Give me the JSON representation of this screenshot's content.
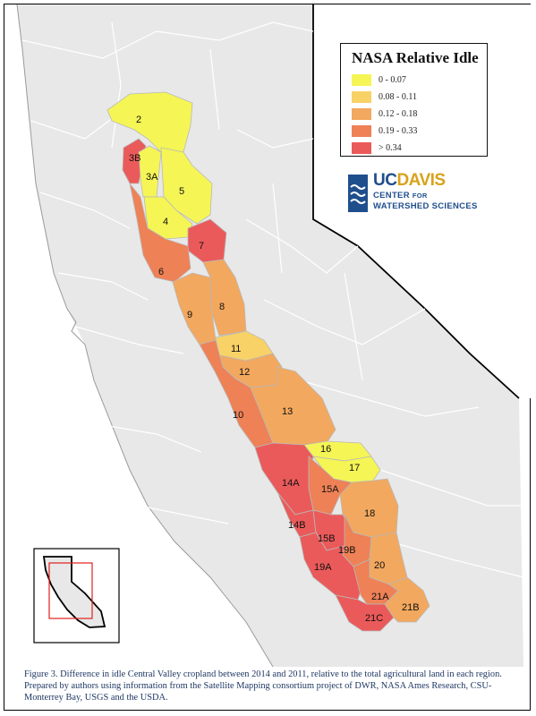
{
  "legend": {
    "title": "NASA Relative Idle",
    "classes": [
      {
        "label": "0 - 0.07",
        "color": "#f5f556"
      },
      {
        "label": "0.08 - 0.11",
        "color": "#f8d267"
      },
      {
        "label": "0.12 - 0.18",
        "color": "#f2a85e"
      },
      {
        "label": "0.19 - 0.33",
        "color": "#ee8156"
      },
      {
        "label": "> 0.34",
        "color": "#eb5a5a"
      }
    ]
  },
  "logo": {
    "uc": "UC",
    "davis": "DAVIS",
    "line1": "CENTER",
    "line1_small": "FOR",
    "line2": "WATERSHED SCIENCES"
  },
  "regions": [
    {
      "id": "2",
      "class": 0
    },
    {
      "id": "3B",
      "class": 4
    },
    {
      "id": "3A",
      "class": 0
    },
    {
      "id": "5",
      "class": 0
    },
    {
      "id": "4",
      "class": 0
    },
    {
      "id": "7",
      "class": 4
    },
    {
      "id": "6",
      "class": 3
    },
    {
      "id": "9",
      "class": 2
    },
    {
      "id": "8",
      "class": 2
    },
    {
      "id": "11",
      "class": 1
    },
    {
      "id": "12",
      "class": 2
    },
    {
      "id": "10",
      "class": 3
    },
    {
      "id": "13",
      "class": 2
    },
    {
      "id": "16",
      "class": 0
    },
    {
      "id": "17",
      "class": 0
    },
    {
      "id": "14A",
      "class": 4
    },
    {
      "id": "15A",
      "class": 3
    },
    {
      "id": "18",
      "class": 2
    },
    {
      "id": "14B",
      "class": 4
    },
    {
      "id": "15B",
      "class": 4
    },
    {
      "id": "19B",
      "class": 3
    },
    {
      "id": "20",
      "class": 2
    },
    {
      "id": "19A",
      "class": 4
    },
    {
      "id": "21A",
      "class": 3
    },
    {
      "id": "21C",
      "class": 4
    },
    {
      "id": "21B",
      "class": 2
    }
  ],
  "caption": "Figure 3. Difference in idle Central Valley cropland between 2014 and 2011, relative to the total agricultural land in each region. Prepared by authors using information from the Satellite Mapping consortium project of DWR, NASA Ames Research, CSU-Monterrey Bay, USGS and the USDA.",
  "colors": {
    "land": "#e8e8e8",
    "ocean": "#ffffff",
    "border": "#000000",
    "inset_box": "#e02020"
  }
}
